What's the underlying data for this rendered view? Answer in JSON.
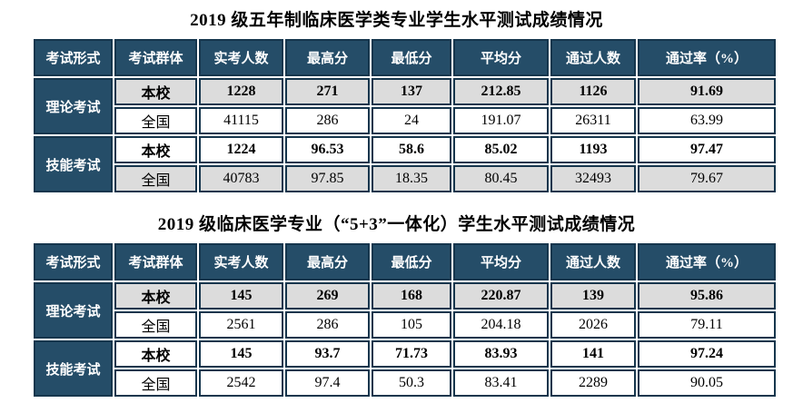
{
  "colors": {
    "header_bg": "#254d68",
    "cell_border": "#16364d",
    "band_bg": "#dcdcdc",
    "header_text": "#ffffff",
    "body_text": "#000000"
  },
  "tables": [
    {
      "title": "2019 级五年制临床医学类专业学生水平测试成绩情况",
      "columns": [
        "考试形式",
        "考试群体",
        "实考人数",
        "最高分",
        "最低分",
        "平均分",
        "通过人数",
        "通过率（%）"
      ],
      "groups": [
        {
          "form": "理论考试",
          "rows": [
            {
              "cohort": "本校",
              "values": [
                "1228",
                "271",
                "137",
                "212.85",
                "1126",
                "91.69"
              ],
              "bold": true,
              "shaded": true
            },
            {
              "cohort": "全国",
              "values": [
                "41115",
                "286",
                "24",
                "191.07",
                "26311",
                "63.99"
              ],
              "bold": false,
              "shaded": false
            }
          ]
        },
        {
          "form": "技能考试",
          "rows": [
            {
              "cohort": "本校",
              "values": [
                "1224",
                "96.53",
                "58.6",
                "85.02",
                "1193",
                "97.47"
              ],
              "bold": true,
              "shaded": false
            },
            {
              "cohort": "全国",
              "values": [
                "40783",
                "97.85",
                "18.35",
                "80.45",
                "32493",
                "79.67"
              ],
              "bold": false,
              "shaded": true
            }
          ]
        }
      ]
    },
    {
      "title": "2019 级临床医学专业（“5+3”一体化）学生水平测试成绩情况",
      "columns": [
        "考试形式",
        "考试群体",
        "实考人数",
        "最高分",
        "最低分",
        "平均分",
        "通过人数",
        "通过率（%）"
      ],
      "groups": [
        {
          "form": "理论考试",
          "rows": [
            {
              "cohort": "本校",
              "values": [
                "145",
                "269",
                "168",
                "220.87",
                "139",
                "95.86"
              ],
              "bold": true,
              "shaded": true
            },
            {
              "cohort": "全国",
              "values": [
                "2561",
                "286",
                "105",
                "204.18",
                "2026",
                "79.11"
              ],
              "bold": false,
              "shaded": false
            }
          ]
        },
        {
          "form": "技能考试",
          "rows": [
            {
              "cohort": "本校",
              "values": [
                "145",
                "93.7",
                "71.73",
                "83.93",
                "141",
                "97.24"
              ],
              "bold": true,
              "shaded": false
            },
            {
              "cohort": "全国",
              "values": [
                "2542",
                "97.4",
                "50.3",
                "83.41",
                "2289",
                "90.05"
              ],
              "bold": false,
              "shaded": false
            }
          ]
        }
      ]
    }
  ]
}
